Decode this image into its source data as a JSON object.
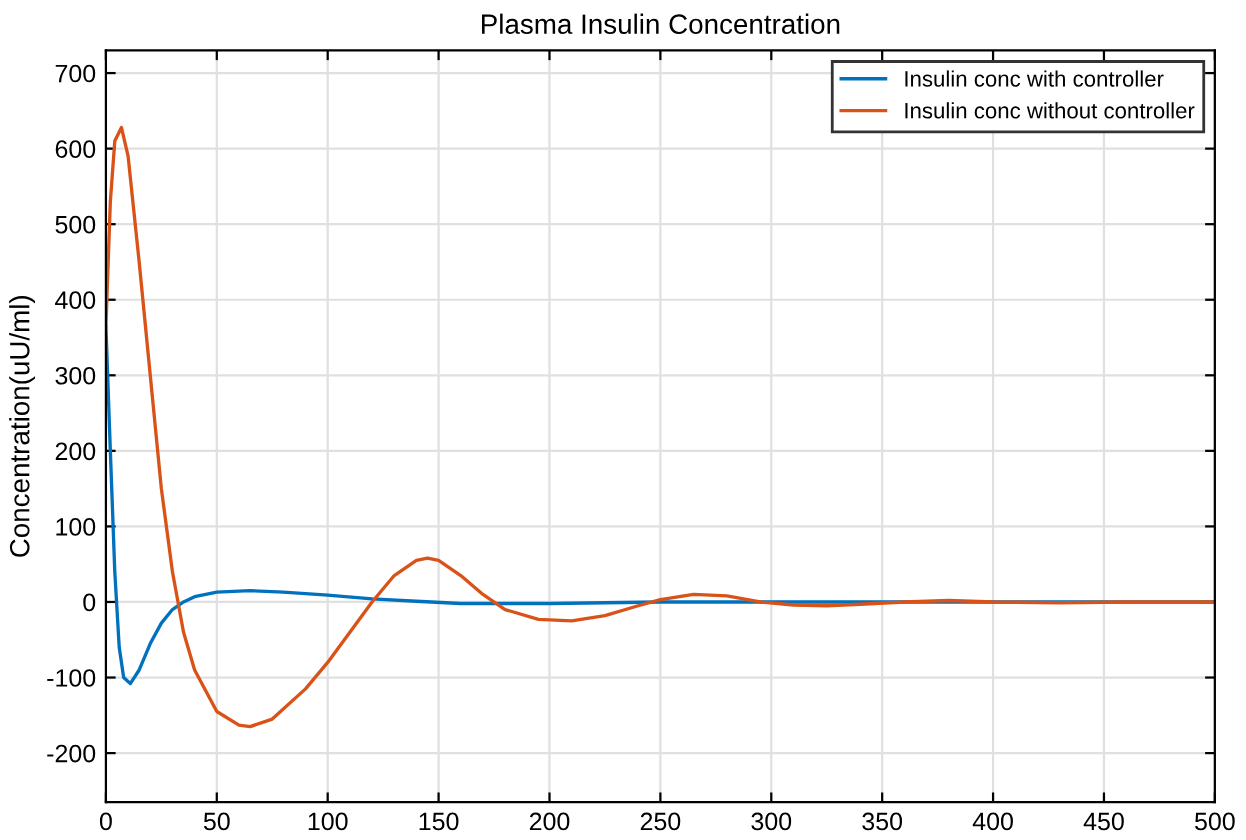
{
  "chart_data": {
    "type": "line",
    "title": "Plasma Insulin Concentration",
    "ylabel": "Concentration(uU/ml)",
    "xlim": [
      0,
      500
    ],
    "ylim": [
      -265,
      730
    ],
    "xticks": [
      0,
      50,
      100,
      150,
      200,
      250,
      300,
      350,
      400,
      450,
      500
    ],
    "yticks": [
      -200,
      -100,
      0,
      100,
      200,
      300,
      400,
      500,
      600,
      700
    ],
    "grid": true,
    "legend": "top right",
    "line_style": "solid",
    "marker": "none",
    "series": [
      {
        "name": "Insulin conc with controller",
        "color": "#0072bd",
        "x": [
          0,
          2,
          4,
          6,
          8,
          11,
          15,
          20,
          25,
          30,
          35,
          40,
          50,
          65,
          80,
          100,
          120,
          140,
          160,
          200,
          250,
          300,
          500
        ],
        "values": [
          365,
          200,
          40,
          -60,
          -100,
          -108,
          -90,
          -55,
          -28,
          -10,
          0,
          7,
          13,
          15,
          13,
          9,
          4,
          1,
          -2,
          -2,
          0,
          0,
          0
        ]
      },
      {
        "name": "Insulin conc without controller",
        "color": "#d95319",
        "x": [
          0,
          2,
          4,
          7,
          10,
          15,
          20,
          25,
          30,
          35,
          40,
          50,
          60,
          65,
          75,
          90,
          100,
          110,
          120,
          130,
          140,
          145,
          150,
          160,
          170,
          180,
          195,
          210,
          225,
          240,
          250,
          265,
          280,
          295,
          310,
          325,
          340,
          360,
          380,
          400,
          430,
          460,
          500
        ],
        "values": [
          365,
          530,
          610,
          628,
          590,
          450,
          300,
          150,
          40,
          -40,
          -90,
          -145,
          -163,
          -165,
          -155,
          -115,
          -80,
          -40,
          0,
          35,
          55,
          58,
          55,
          35,
          10,
          -10,
          -23,
          -25,
          -18,
          -5,
          3,
          10,
          8,
          0,
          -4,
          -5,
          -3,
          0,
          2,
          0,
          -1,
          0,
          0
        ]
      }
    ]
  }
}
